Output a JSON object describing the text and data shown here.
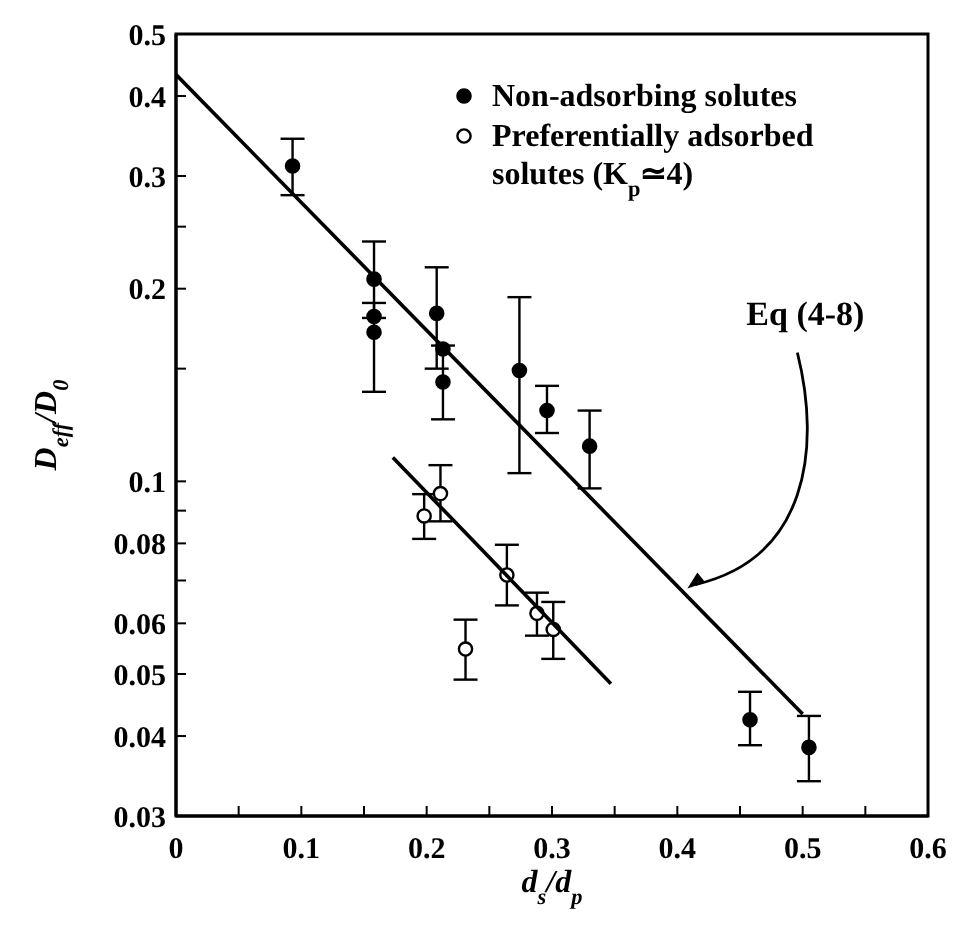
{
  "chart_data": {
    "type": "scatter",
    "xlabel": "d$_{s}$/d$_{p}$",
    "ylabel": "D$_{eff}$/D$_{0}$",
    "log": "y",
    "xlim": [
      0,
      0.6
    ],
    "ylim": [
      0.03,
      0.5
    ],
    "xticks": [
      0,
      {
        "value": 0.05,
        "label": null
      },
      0.1,
      {
        "value": 0.15,
        "label": null
      },
      0.2,
      {
        "value": 0.25,
        "label": null
      },
      0.3,
      {
        "value": 0.35,
        "label": null
      },
      0.4,
      {
        "value": 0.45,
        "label": null
      },
      0.5,
      {
        "value": 0.55,
        "label": null
      },
      0.6
    ],
    "yticks": [
      0.03,
      0.04,
      0.05,
      0.06,
      {
        "value": 0.07,
        "label": null
      },
      0.08,
      {
        "value": 0.09,
        "label": null
      },
      0.1,
      {
        "value": 0.15,
        "label": null
      },
      0.2,
      {
        "value": 0.25,
        "label": null
      },
      0.3,
      0.4,
      0.5
    ],
    "grid": false,
    "legend": "top right",
    "series": [
      {
        "name": "Non-adsorbing solutes",
        "color": "#000000",
        "marker": "circle",
        "x": [
          0.093,
          0.158,
          0.158,
          0.158,
          0.208,
          0.213,
          0.213,
          0.274,
          0.296,
          0.33,
          0.458,
          0.505
        ],
        "values": [
          0.311,
          0.207,
          0.181,
          0.171,
          0.183,
          0.161,
          0.143,
          0.149,
          0.129,
          0.1135,
          0.0424,
          0.0384
        ],
        "errors": [
          [
            0.28,
            0.343
          ],
          [
            0.18,
            0.237
          ],
          null,
          [
            0.138,
            0.19
          ],
          [
            0.15,
            0.216
          ],
          null,
          [
            0.125,
            0.163
          ],
          [
            0.103,
            0.194
          ],
          [
            0.119,
            0.141
          ],
          [
            0.0975,
            0.129
          ],
          [
            0.0387,
            0.0469
          ],
          [
            0.034,
            0.043
          ]
        ]
      },
      {
        "name": "Preferentially adsorbed solutes (K$_{p}$≃4)",
        "color": "#ffffff",
        "marker": "circle",
        "x": [
          0.198,
          0.211,
          0.231,
          0.264,
          0.288,
          0.301
        ],
        "values": [
          0.0883,
          0.0957,
          0.0547,
          0.0714,
          0.0622,
          0.0587
        ],
        "errors": [
          [
            0.0813,
            0.0955
          ],
          [
            0.0866,
            0.106
          ],
          [
            0.049,
            0.0608
          ],
          [
            0.064,
            0.0796
          ],
          [
            0.0574,
            0.067
          ],
          [
            0.0528,
            0.0648
          ]
        ]
      },
      {
        "type": "line",
        "color": "#000000",
        "marker": "none",
        "x": [
          0,
          0.5
        ],
        "values": [
          0.432,
          0.0433
        ]
      },
      {
        "type": "line",
        "color": "#000000",
        "marker": "none",
        "x": [
          0.173,
          0.347
        ],
        "values": [
          0.109,
          0.0483
        ]
      }
    ],
    "annotations": [
      {
        "text": "Eq (4-8)",
        "x": 0.408,
        "y": 0.068
      }
    ]
  }
}
